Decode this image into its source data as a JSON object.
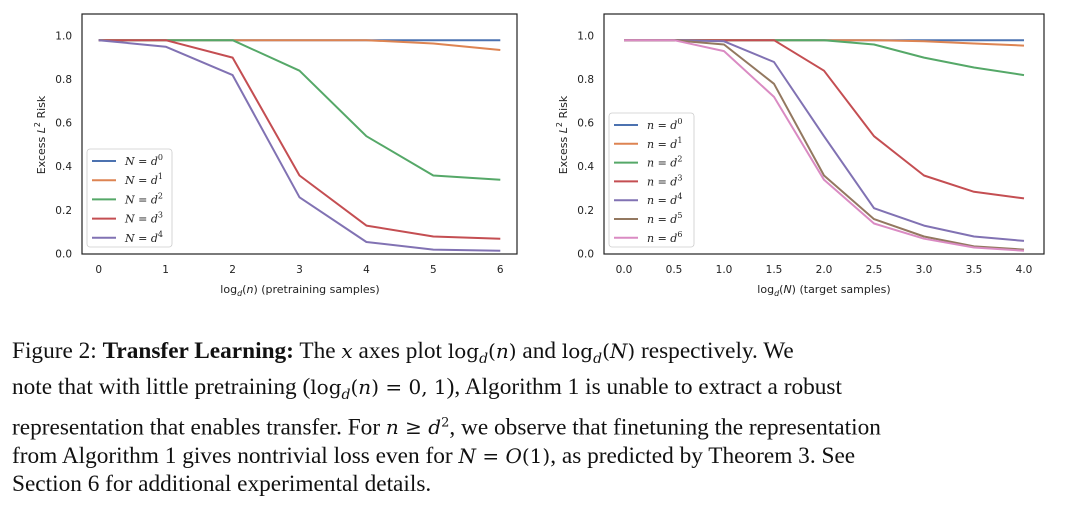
{
  "chart_data": [
    {
      "type": "line",
      "xlabel": "log_d(n) (pretraining samples)",
      "ylabel": "Excess L^2 Risk",
      "xlim": [
        -0.25,
        6.25
      ],
      "ylim": [
        0,
        1.1
      ],
      "xticks": [
        "0",
        "1",
        "2",
        "3",
        "4",
        "5",
        "6"
      ],
      "yticks": [
        "0.0",
        "0.2",
        "0.4",
        "0.6",
        "0.8",
        "1.0"
      ],
      "x": [
        0,
        1,
        2,
        3,
        4,
        5,
        6
      ],
      "legend_position": "lower-left",
      "grid": false,
      "series": [
        {
          "name": "N = d^0",
          "color": "#4c72b0",
          "values": [
            0.98,
            0.98,
            0.98,
            0.98,
            0.98,
            0.98,
            0.98
          ]
        },
        {
          "name": "N = d^1",
          "color": "#dd8452",
          "values": [
            0.98,
            0.98,
            0.98,
            0.98,
            0.98,
            0.965,
            0.935
          ]
        },
        {
          "name": "N = d^2",
          "color": "#55a868",
          "values": [
            0.98,
            0.98,
            0.98,
            0.84,
            0.54,
            0.36,
            0.34
          ]
        },
        {
          "name": "N = d^3",
          "color": "#c44e52",
          "values": [
            0.98,
            0.98,
            0.9,
            0.36,
            0.13,
            0.08,
            0.07
          ]
        },
        {
          "name": "N = d^4",
          "color": "#8172b3",
          "values": [
            0.98,
            0.95,
            0.82,
            0.26,
            0.055,
            0.02,
            0.015
          ]
        }
      ]
    },
    {
      "type": "line",
      "xlabel": "log_d(N) (target samples)",
      "ylabel": "Excess L^2 Risk",
      "xlim": [
        -0.2,
        4.2
      ],
      "ylim": [
        0,
        1.1
      ],
      "xticks": [
        "0.0",
        "0.5",
        "1.0",
        "1.5",
        "2.0",
        "2.5",
        "3.0",
        "3.5",
        "4.0"
      ],
      "yticks": [
        "0.0",
        "0.2",
        "0.4",
        "0.6",
        "0.8",
        "1.0"
      ],
      "x": [
        0.0,
        0.5,
        1.0,
        1.5,
        2.0,
        2.5,
        3.0,
        3.5,
        4.0
      ],
      "legend_position": "left",
      "grid": false,
      "series": [
        {
          "name": "n = d^0",
          "color": "#4c72b0",
          "values": [
            0.98,
            0.98,
            0.98,
            0.98,
            0.98,
            0.98,
            0.98,
            0.98,
            0.98
          ]
        },
        {
          "name": "n = d^1",
          "color": "#dd8452",
          "values": [
            0.98,
            0.98,
            0.98,
            0.98,
            0.98,
            0.98,
            0.975,
            0.965,
            0.955
          ]
        },
        {
          "name": "n = d^2",
          "color": "#55a868",
          "values": [
            0.98,
            0.98,
            0.98,
            0.98,
            0.98,
            0.96,
            0.9,
            0.855,
            0.82
          ]
        },
        {
          "name": "n = d^3",
          "color": "#c44e52",
          "values": [
            0.98,
            0.98,
            0.98,
            0.98,
            0.84,
            0.54,
            0.36,
            0.285,
            0.255
          ]
        },
        {
          "name": "n = d^4",
          "color": "#8172b3",
          "values": [
            0.98,
            0.98,
            0.975,
            0.88,
            0.54,
            0.21,
            0.13,
            0.08,
            0.06
          ]
        },
        {
          "name": "n = d^5",
          "color": "#937860",
          "values": [
            0.98,
            0.98,
            0.96,
            0.78,
            0.36,
            0.16,
            0.08,
            0.035,
            0.02
          ]
        },
        {
          "name": "n = d^6",
          "color": "#da8bc3",
          "values": [
            0.98,
            0.98,
            0.93,
            0.72,
            0.34,
            0.14,
            0.07,
            0.03,
            0.015
          ]
        }
      ]
    }
  ],
  "caption": {
    "figure_label": "Figure 2:",
    "title": "Transfer Learning:",
    "l1_a": "The",
    "x_var": "x",
    "l1_b": "axes plot",
    "log_n": "log",
    "sub_d": "d",
    "open_n": "(",
    "var_n": "n",
    "close_n": ")",
    "and": "and",
    "log_N": "log",
    "sub_d2": "d",
    "open_N": "(",
    "var_N": "N",
    "close_N": ")",
    "l1_c": "respectively.  We",
    "l2_a": "note that with little pretraining (",
    "l2_log": "log",
    "l2_sub": "d",
    "l2_open": "(",
    "l2_n": "n",
    "l2_eq": ") = 0, 1",
    "l2_b": "), Algorithm 1 is unable to extract a robust",
    "l3_a": "representation that enables transfer. For",
    "l3_n": "n",
    "l3_geq": " ≥ ",
    "l3_d": "d",
    "l3_exp": "2",
    "l3_b": ", we observe that finetuning the representation",
    "l4_a": "from Algorithm 1 gives nontrivial loss even for",
    "l4_N": "N",
    "l4_eq": " = ",
    "l4_O": "O",
    "l4_one": "(1)",
    "l4_b": ", as predicted by Theorem 3. See",
    "l5": "Section 6 for additional experimental details."
  }
}
